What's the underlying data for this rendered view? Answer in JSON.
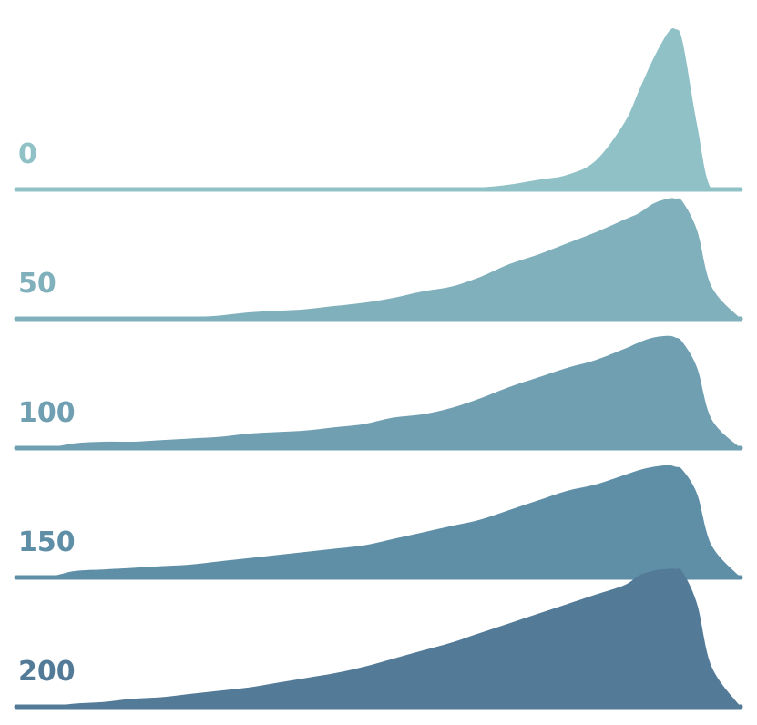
{
  "chart_data": {
    "type": "area",
    "title": "",
    "xlabel": "",
    "ylabel": "",
    "grid": false,
    "legend": "none",
    "x": [
      0,
      0.04,
      0.08,
      0.12,
      0.16,
      0.2,
      0.24,
      0.28,
      0.32,
      0.36,
      0.4,
      0.44,
      0.48,
      0.52,
      0.56,
      0.6,
      0.64,
      0.68,
      0.72,
      0.76,
      0.8,
      0.84,
      0.86,
      0.88,
      0.9,
      0.91,
      0.92,
      0.94,
      0.96,
      1.0
    ],
    "xlim": [
      0,
      1
    ],
    "series": [
      {
        "name": "0",
        "color": "#8fc1c6",
        "values": [
          0,
          0,
          0,
          0,
          0,
          0,
          0,
          0,
          0,
          0,
          0,
          0,
          0,
          0,
          0,
          0.5,
          1.2,
          3,
          6,
          9,
          18,
          42,
          62,
          82,
          98,
          100,
          92,
          40,
          0,
          0
        ]
      },
      {
        "name": "50",
        "color": "#7fb0bb",
        "values": [
          0,
          0,
          0,
          0,
          0,
          0,
          1,
          2,
          4,
          5,
          6,
          8,
          10,
          13,
          17,
          20,
          26,
          34,
          40,
          47,
          54,
          62,
          66,
          72,
          75,
          75,
          73,
          55,
          20,
          0
        ]
      },
      {
        "name": "100",
        "color": "#6f9fb1",
        "values": [
          0,
          0,
          3,
          4,
          4,
          5,
          6,
          7,
          9,
          10,
          11,
          13,
          15,
          19,
          21,
          25,
          31,
          38,
          44,
          50,
          55,
          62,
          66,
          69,
          70,
          69,
          66,
          50,
          18,
          0
        ]
      },
      {
        "name": "150",
        "color": "#5f8fa6",
        "values": [
          0,
          0,
          4,
          5,
          6,
          7,
          8,
          10,
          12,
          14,
          16,
          18,
          20,
          24,
          28,
          32,
          36,
          42,
          48,
          54,
          58,
          64,
          67,
          69,
          70,
          69,
          67,
          52,
          20,
          0
        ]
      },
      {
        "name": "200",
        "color": "#537b98",
        "values": [
          0,
          0,
          2,
          3,
          5,
          6,
          8,
          10,
          12,
          15,
          18,
          21,
          25,
          30,
          35,
          40,
          46,
          52,
          58,
          64,
          70,
          76,
          82,
          85,
          86,
          86,
          84,
          64,
          25,
          0
        ]
      }
    ]
  }
}
